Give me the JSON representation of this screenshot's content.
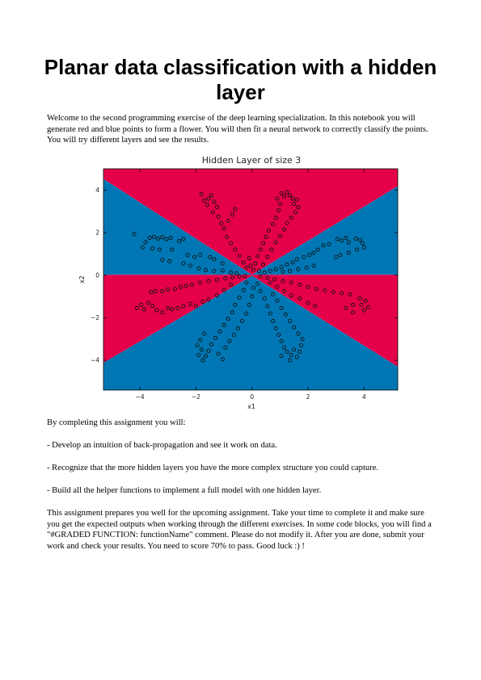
{
  "document": {
    "title": "Planar data classification with a hidden layer",
    "intro": "Welcome to the second programming exercise of the deep learning specialization. In this notebook you will generate red and blue points to form a flower. You will then fit a neural network to correctly classify the points. You will try different layers and see the results.",
    "goals_lead": "By completing this assignment you will:",
    "goals": [
      "- Develop an intuition of back-propagation and see it work on data.",
      "- Recognize that the more hidden layers you have the more complex structure you could capture.",
      "- Build all the helper functions to implement a full model with one hidden layer."
    ],
    "closing": "This assignment prepares you well for the upcoming assignment. Take your time to complete it and make sure you get the expected outputs when working through the different exercises. In some code blocks, you will find a \"#GRADED FUNCTION: functionName\" comment. Please do not modify it. After you are done, submit your work and check your results. You need to score 70% to pass. Good luck :) !"
  },
  "chart_data": {
    "type": "scatter",
    "title": "Hidden Layer of size 3",
    "xlabel": "x1",
    "ylabel": "x2",
    "xlim": [
      -5.3,
      5.2
    ],
    "ylim": [
      -5.4,
      5.0
    ],
    "xticks": [
      -4,
      -2,
      0,
      2,
      4
    ],
    "yticks": [
      -4,
      -2,
      0,
      2,
      4
    ],
    "grid": false,
    "colors": {
      "red_region": "#e5004a",
      "blue_region": "#0077b4",
      "point_edge": "#111111"
    },
    "decision_regions": [
      {
        "class": "red",
        "polygon": [
          [
            -5.3,
            4.52
          ],
          [
            0,
            0.02
          ],
          [
            5.2,
            4.18
          ],
          [
            5.2,
            5.0
          ],
          [
            -5.3,
            5.0
          ]
        ]
      },
      {
        "class": "blue",
        "polygon": [
          [
            -5.3,
            4.52
          ],
          [
            0,
            0.02
          ],
          [
            5.2,
            4.18
          ],
          [
            5.2,
            0.02
          ],
          [
            -5.3,
            0.02
          ]
        ]
      },
      {
        "class": "red",
        "polygon": [
          [
            -5.3,
            0.02
          ],
          [
            5.2,
            0.02
          ],
          [
            5.2,
            -4.3
          ],
          [
            0,
            -0.03
          ],
          [
            -5.3,
            -4.12
          ]
        ]
      },
      {
        "class": "blue",
        "polygon": [
          [
            -5.3,
            -4.12
          ],
          [
            0,
            -0.03
          ],
          [
            5.2,
            -4.3
          ],
          [
            5.2,
            -5.4
          ],
          [
            -5.3,
            -5.4
          ]
        ]
      }
    ],
    "points": [
      {
        "x": -4.2,
        "y": 1.92
      },
      {
        "x": -3.8,
        "y": 1.55
      },
      {
        "x": -3.65,
        "y": 1.75
      },
      {
        "x": -3.5,
        "y": 1.8
      },
      {
        "x": -3.35,
        "y": 1.72
      },
      {
        "x": -3.2,
        "y": 1.78
      },
      {
        "x": -3.05,
        "y": 1.7
      },
      {
        "x": -2.9,
        "y": 1.75
      },
      {
        "x": -2.6,
        "y": 1.6
      },
      {
        "x": -2.45,
        "y": 1.7
      },
      {
        "x": -3.9,
        "y": 1.3
      },
      {
        "x": -3.55,
        "y": 1.25
      },
      {
        "x": -3.3,
        "y": 1.2
      },
      {
        "x": -2.85,
        "y": 1.2
      },
      {
        "x": -2.3,
        "y": 0.95
      },
      {
        "x": -2.05,
        "y": 0.85
      },
      {
        "x": -1.85,
        "y": 0.95
      },
      {
        "x": -1.5,
        "y": 0.85
      },
      {
        "x": -1.35,
        "y": 0.75
      },
      {
        "x": -1.05,
        "y": 0.55
      },
      {
        "x": -3.2,
        "y": 0.72
      },
      {
        "x": -2.95,
        "y": 0.65
      },
      {
        "x": -2.45,
        "y": 0.55
      },
      {
        "x": -2.2,
        "y": 0.45
      },
      {
        "x": -1.9,
        "y": 0.32
      },
      {
        "x": -1.65,
        "y": 0.24
      },
      {
        "x": -1.35,
        "y": 0.2
      },
      {
        "x": -1.05,
        "y": 0.22
      },
      {
        "x": -0.75,
        "y": 0.12
      },
      {
        "x": -0.55,
        "y": 0.08
      },
      {
        "x": -3.6,
        "y": -0.8
      },
      {
        "x": -3.45,
        "y": -0.75
      },
      {
        "x": -3.2,
        "y": -0.75
      },
      {
        "x": -3.0,
        "y": -0.68
      },
      {
        "x": -2.75,
        "y": -0.65
      },
      {
        "x": -2.55,
        "y": -0.55
      },
      {
        "x": -2.35,
        "y": -0.5
      },
      {
        "x": -2.15,
        "y": -0.45
      },
      {
        "x": -1.85,
        "y": -0.35
      },
      {
        "x": -1.55,
        "y": -0.28
      },
      {
        "x": -1.25,
        "y": -0.22
      },
      {
        "x": -0.95,
        "y": -0.15
      },
      {
        "x": -0.7,
        "y": -0.1
      },
      {
        "x": -0.45,
        "y": -0.06
      },
      {
        "x": -0.25,
        "y": -0.04
      },
      {
        "x": -4.1,
        "y": -1.55
      },
      {
        "x": -3.95,
        "y": -1.4
      },
      {
        "x": -3.85,
        "y": -1.6
      },
      {
        "x": -3.7,
        "y": -1.3
      },
      {
        "x": -3.55,
        "y": -1.45
      },
      {
        "x": -3.4,
        "y": -1.65
      },
      {
        "x": -3.2,
        "y": -1.75
      },
      {
        "x": -3.0,
        "y": -1.55
      },
      {
        "x": -2.85,
        "y": -1.6
      },
      {
        "x": -2.65,
        "y": -1.55
      },
      {
        "x": -2.45,
        "y": -1.45
      },
      {
        "x": -2.2,
        "y": -1.35
      },
      {
        "x": -2.0,
        "y": -1.45
      },
      {
        "x": -1.75,
        "y": -1.25
      },
      {
        "x": -1.55,
        "y": -1.15
      },
      {
        "x": -1.25,
        "y": -0.95
      },
      {
        "x": -1.0,
        "y": -0.7
      },
      {
        "x": -0.75,
        "y": -0.45
      },
      {
        "x": -1.8,
        "y": 3.8
      },
      {
        "x": -1.7,
        "y": 3.5
      },
      {
        "x": -1.6,
        "y": 3.3
      },
      {
        "x": -1.55,
        "y": 3.6
      },
      {
        "x": -1.45,
        "y": 3.75
      },
      {
        "x": -1.35,
        "y": 3.45
      },
      {
        "x": -1.25,
        "y": 3.2
      },
      {
        "x": -1.4,
        "y": 2.95
      },
      {
        "x": -1.2,
        "y": 2.75
      },
      {
        "x": -1.1,
        "y": 2.45
      },
      {
        "x": -1.0,
        "y": 2.2
      },
      {
        "x": -0.85,
        "y": 2.55
      },
      {
        "x": -0.7,
        "y": 2.85
      },
      {
        "x": -0.6,
        "y": 3.1
      },
      {
        "x": -0.9,
        "y": 1.8
      },
      {
        "x": -0.75,
        "y": 1.5
      },
      {
        "x": -0.6,
        "y": 1.2
      },
      {
        "x": -0.45,
        "y": 0.9
      },
      {
        "x": -0.3,
        "y": 0.6
      },
      {
        "x": -0.2,
        "y": 0.35
      },
      {
        "x": -0.1,
        "y": 0.8
      },
      {
        "x": -0.05,
        "y": 0.45
      },
      {
        "x": 0.05,
        "y": 0.25
      },
      {
        "x": 0.12,
        "y": 0.55
      },
      {
        "x": 0.2,
        "y": 0.9
      },
      {
        "x": 0.3,
        "y": 1.2
      },
      {
        "x": 0.4,
        "y": 1.5
      },
      {
        "x": 0.5,
        "y": 1.8
      },
      {
        "x": 0.6,
        "y": 2.1
      },
      {
        "x": 0.75,
        "y": 2.4
      },
      {
        "x": 0.85,
        "y": 2.7
      },
      {
        "x": 0.95,
        "y": 3.05
      },
      {
        "x": 1.0,
        "y": 3.35
      },
      {
        "x": 0.9,
        "y": 3.6
      },
      {
        "x": 1.05,
        "y": 3.85
      },
      {
        "x": 1.15,
        "y": 3.7
      },
      {
        "x": 1.25,
        "y": 3.9
      },
      {
        "x": 1.35,
        "y": 3.75
      },
      {
        "x": 1.45,
        "y": 3.6
      },
      {
        "x": 1.5,
        "y": 3.35
      },
      {
        "x": 1.6,
        "y": 3.55
      },
      {
        "x": 1.65,
        "y": 3.2
      },
      {
        "x": 1.55,
        "y": 2.95
      },
      {
        "x": 1.4,
        "y": 2.7
      },
      {
        "x": 1.25,
        "y": 2.45
      },
      {
        "x": 1.15,
        "y": 2.15
      },
      {
        "x": 1.0,
        "y": 1.85
      },
      {
        "x": 0.85,
        "y": 1.55
      },
      {
        "x": 0.7,
        "y": 1.2
      },
      {
        "x": 0.55,
        "y": 0.85
      },
      {
        "x": 0.4,
        "y": 0.5
      },
      {
        "x": 0.25,
        "y": 0.2
      },
      {
        "x": 3.05,
        "y": 1.7
      },
      {
        "x": 3.2,
        "y": 1.62
      },
      {
        "x": 3.35,
        "y": 1.75
      },
      {
        "x": 3.45,
        "y": 1.55
      },
      {
        "x": 3.7,
        "y": 1.72
      },
      {
        "x": 3.85,
        "y": 1.65
      },
      {
        "x": 3.95,
        "y": 1.5
      },
      {
        "x": 4.0,
        "y": 1.3
      },
      {
        "x": 3.75,
        "y": 1.2
      },
      {
        "x": 3.45,
        "y": 1.05
      },
      {
        "x": 3.15,
        "y": 0.95
      },
      {
        "x": 3.0,
        "y": 0.85
      },
      {
        "x": 2.75,
        "y": 1.45
      },
      {
        "x": 2.55,
        "y": 1.4
      },
      {
        "x": 2.35,
        "y": 1.2
      },
      {
        "x": 2.2,
        "y": 1.05
      },
      {
        "x": 2.05,
        "y": 0.95
      },
      {
        "x": 1.85,
        "y": 0.85
      },
      {
        "x": 1.6,
        "y": 0.75
      },
      {
        "x": 1.45,
        "y": 0.6
      },
      {
        "x": 1.25,
        "y": 0.5
      },
      {
        "x": 1.05,
        "y": 0.38
      },
      {
        "x": 0.85,
        "y": 0.28
      },
      {
        "x": 0.65,
        "y": 0.2
      },
      {
        "x": 0.45,
        "y": 0.12
      },
      {
        "x": 2.2,
        "y": 0.45
      },
      {
        "x": 1.95,
        "y": 0.35
      },
      {
        "x": 1.65,
        "y": 0.28
      },
      {
        "x": 1.35,
        "y": 0.2
      },
      {
        "x": 1.1,
        "y": 0.16
      },
      {
        "x": 0.3,
        "y": -0.05
      },
      {
        "x": 0.55,
        "y": -0.12
      },
      {
        "x": 0.8,
        "y": -0.2
      },
      {
        "x": 1.1,
        "y": -0.28
      },
      {
        "x": 1.4,
        "y": -0.35
      },
      {
        "x": 1.7,
        "y": -0.45
      },
      {
        "x": 2.0,
        "y": -0.55
      },
      {
        "x": 2.3,
        "y": -0.65
      },
      {
        "x": 2.6,
        "y": -0.72
      },
      {
        "x": 2.9,
        "y": -0.8
      },
      {
        "x": 3.2,
        "y": -0.85
      },
      {
        "x": 3.5,
        "y": -0.9
      },
      {
        "x": 3.85,
        "y": -1.1
      },
      {
        "x": 4.05,
        "y": -1.2
      },
      {
        "x": 3.6,
        "y": -1.4
      },
      {
        "x": 3.35,
        "y": -1.55
      },
      {
        "x": 3.6,
        "y": -1.75
      },
      {
        "x": 3.9,
        "y": -1.4
      },
      {
        "x": 4.15,
        "y": -1.5
      },
      {
        "x": 4.0,
        "y": -1.65
      },
      {
        "x": 2.0,
        "y": -1.3
      },
      {
        "x": 2.25,
        "y": -1.45
      },
      {
        "x": 1.7,
        "y": -1.1
      },
      {
        "x": 1.4,
        "y": -0.95
      },
      {
        "x": 1.15,
        "y": -0.75
      },
      {
        "x": 0.9,
        "y": -0.55
      },
      {
        "x": 0.65,
        "y": -0.35
      },
      {
        "x": 0.2,
        "y": -0.4
      },
      {
        "x": 0.3,
        "y": -0.75
      },
      {
        "x": 0.45,
        "y": -1.1
      },
      {
        "x": 0.55,
        "y": -1.45
      },
      {
        "x": 0.65,
        "y": -1.8
      },
      {
        "x": 0.75,
        "y": -2.15
      },
      {
        "x": 0.85,
        "y": -2.5
      },
      {
        "x": 0.95,
        "y": -2.8
      },
      {
        "x": 1.05,
        "y": -3.1
      },
      {
        "x": 1.15,
        "y": -3.4
      },
      {
        "x": 1.25,
        "y": -3.6
      },
      {
        "x": 1.4,
        "y": -3.75
      },
      {
        "x": 1.5,
        "y": -3.5
      },
      {
        "x": 1.6,
        "y": -3.85
      },
      {
        "x": 1.7,
        "y": -3.6
      },
      {
        "x": 1.75,
        "y": -3.3
      },
      {
        "x": 1.8,
        "y": -3.0
      },
      {
        "x": 1.65,
        "y": -2.75
      },
      {
        "x": 1.5,
        "y": -2.45
      },
      {
        "x": 1.35,
        "y": -2.15
      },
      {
        "x": 1.2,
        "y": -1.85
      },
      {
        "x": 1.05,
        "y": -1.55
      },
      {
        "x": 0.9,
        "y": -1.2
      },
      {
        "x": 0.75,
        "y": -0.9
      },
      {
        "x": 1.35,
        "y": -4.0
      },
      {
        "x": 1.05,
        "y": -3.8
      },
      {
        "x": -0.2,
        "y": -0.35
      },
      {
        "x": -0.3,
        "y": -0.7
      },
      {
        "x": -0.45,
        "y": -1.05
      },
      {
        "x": -0.6,
        "y": -1.4
      },
      {
        "x": -0.7,
        "y": -1.75
      },
      {
        "x": -0.85,
        "y": -2.05
      },
      {
        "x": -1.0,
        "y": -2.35
      },
      {
        "x": -1.15,
        "y": -2.65
      },
      {
        "x": -1.3,
        "y": -2.95
      },
      {
        "x": -1.45,
        "y": -3.25
      },
      {
        "x": -1.55,
        "y": -3.55
      },
      {
        "x": -1.65,
        "y": -3.8
      },
      {
        "x": -1.8,
        "y": -3.5
      },
      {
        "x": -1.9,
        "y": -3.75
      },
      {
        "x": -1.75,
        "y": -4.0
      },
      {
        "x": -1.95,
        "y": -3.3
      },
      {
        "x": -1.85,
        "y": -3.05
      },
      {
        "x": -1.7,
        "y": -2.75
      },
      {
        "x": -0.95,
        "y": -3.4
      },
      {
        "x": -0.8,
        "y": -3.1
      },
      {
        "x": -0.65,
        "y": -2.8
      },
      {
        "x": -0.5,
        "y": -2.5
      },
      {
        "x": -0.35,
        "y": -2.15
      },
      {
        "x": -0.2,
        "y": -1.8
      },
      {
        "x": -0.1,
        "y": -1.4
      },
      {
        "x": 0.0,
        "y": -1.0
      },
      {
        "x": 0.05,
        "y": -0.6
      },
      {
        "x": -1.2,
        "y": -3.7
      },
      {
        "x": -1.05,
        "y": -3.95
      }
    ]
  }
}
